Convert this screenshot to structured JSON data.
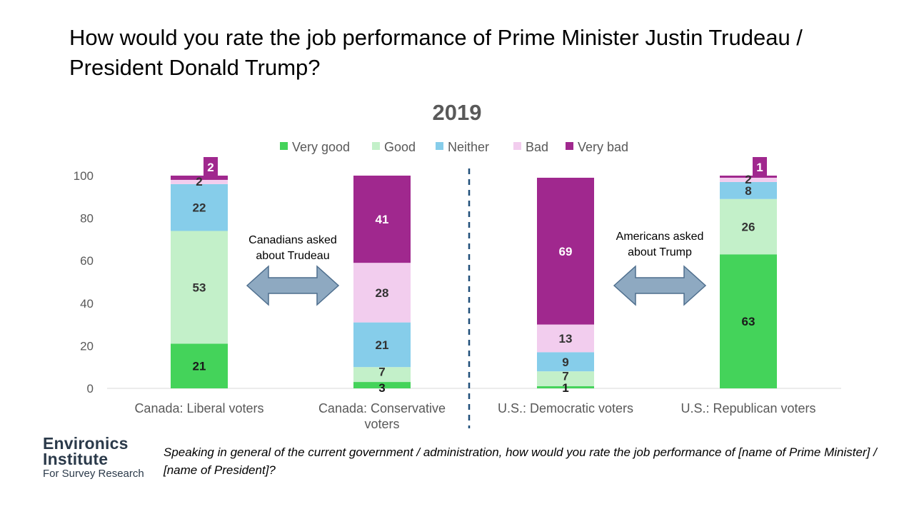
{
  "header": {
    "title": "How would you rate the job performance of Prime Minister Justin Trudeau / President Donald Trump?"
  },
  "chart_data": {
    "type": "bar",
    "stacked": true,
    "title": "2019",
    "categories": [
      "Canada: Liberal voters",
      "Canada: Conservative voters",
      "U.S.: Democratic voters",
      "U.S.: Republican voters"
    ],
    "series": [
      {
        "name": "Very good",
        "color": "#44d35a",
        "values": [
          21,
          3,
          1,
          63
        ]
      },
      {
        "name": "Good",
        "color": "#c3f0c9",
        "values": [
          53,
          7,
          7,
          26
        ]
      },
      {
        "name": "Neither",
        "color": "#86cdea",
        "values": [
          22,
          21,
          9,
          8
        ]
      },
      {
        "name": "Bad",
        "color": "#f2cdee",
        "values": [
          2,
          28,
          13,
          2
        ]
      },
      {
        "name": "Very bad",
        "color": "#a0288e",
        "values": [
          2,
          41,
          69,
          1
        ]
      }
    ],
    "ylim": [
      0,
      100
    ],
    "yticks": [
      0,
      20,
      40,
      60,
      80,
      100
    ],
    "legend_position": "top",
    "grid": false,
    "annotations": [
      {
        "text": "Canadians asked about Trudeau",
        "between": [
          0,
          1
        ]
      },
      {
        "text": "Americans asked about Trump",
        "between": [
          2,
          3
        ]
      }
    ]
  },
  "logo": {
    "line1": "Environics",
    "line2": "Institute",
    "line3": "For Survey Research"
  },
  "footnote": "Speaking in general of the current government / administration, how would you rate the job performance of [name of Prime Minister] / [name of President]?"
}
